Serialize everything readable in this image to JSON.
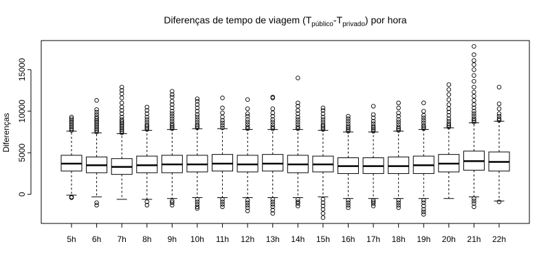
{
  "chart_data": {
    "type": "box",
    "title": {
      "prefix": "Diferenças de tempo de viagem (T",
      "sub1": "público",
      "mid": "-T",
      "sub2": "privado",
      "suffix": ") por hora"
    },
    "xlabel": "",
    "ylabel": "Diferenças",
    "ylim": [
      -3500,
      18500
    ],
    "yticks": [
      0,
      5000,
      10000,
      15000
    ],
    "grid": false,
    "categories": [
      "5h",
      "6h",
      "7h",
      "8h",
      "9h",
      "10h",
      "11h",
      "12h",
      "13h",
      "14h",
      "15h",
      "16h",
      "17h",
      "18h",
      "19h",
      "20h",
      "21h",
      "22h"
    ],
    "boxes": [
      {
        "whisker_low": -100,
        "q1": 2800,
        "median": 3700,
        "q3": 4700,
        "whisker_high": 7600,
        "outliers_low": [
          -300,
          -400
        ],
        "outliers_high": [
          7700,
          7900,
          8100,
          8300,
          8500,
          8700,
          8900,
          9100,
          9300
        ]
      },
      {
        "whisker_low": -300,
        "q1": 2600,
        "median": 3500,
        "q3": 4500,
        "whisker_high": 7400,
        "outliers_low": [
          -1000,
          -1300
        ],
        "outliers_high": [
          7500,
          7700,
          7900,
          8100,
          8300,
          8500,
          8700,
          8900,
          9100,
          9300,
          9600,
          9900,
          10200,
          11300
        ]
      },
      {
        "whisker_low": -600,
        "q1": 2400,
        "median": 3300,
        "q3": 4300,
        "whisker_high": 7300,
        "outliers_low": [],
        "outliers_high": [
          7400,
          7600,
          7800,
          8000,
          8200,
          8400,
          8600,
          8800,
          9000,
          9300,
          9700,
          10100,
          10500,
          11000,
          11600,
          12100,
          12500,
          12900
        ]
      },
      {
        "whisker_low": -600,
        "q1": 2600,
        "median": 3500,
        "q3": 4600,
        "whisker_high": 7700,
        "outliers_low": [
          -900,
          -1300
        ],
        "outliers_high": [
          7800,
          8000,
          8200,
          8400,
          8700,
          9000,
          9300,
          9700,
          10100,
          10500
        ]
      },
      {
        "whisker_low": -500,
        "q1": 2600,
        "median": 3600,
        "q3": 4700,
        "whisker_high": 7800,
        "outliers_low": [
          -800,
          -1000,
          -1300
        ],
        "outliers_high": [
          7900,
          8100,
          8300,
          8500,
          8800,
          9100,
          9400,
          9700,
          10000,
          10400,
          10800,
          11200,
          11700,
          12000,
          12400
        ]
      },
      {
        "whisker_low": -400,
        "q1": 2700,
        "median": 3600,
        "q3": 4700,
        "whisker_high": 7900,
        "outliers_low": [
          -600,
          -900,
          -1200,
          -1500,
          -1700
        ],
        "outliers_high": [
          8000,
          8200,
          8400,
          8700,
          9000,
          9300,
          9600,
          10000,
          10400,
          10800,
          11200,
          11500
        ]
      },
      {
        "whisker_low": -400,
        "q1": 2800,
        "median": 3700,
        "q3": 4800,
        "whisker_high": 7900,
        "outliers_low": [
          -600,
          -900,
          -1200,
          -1500
        ],
        "outliers_high": [
          8000,
          8300,
          8600,
          8900,
          9300,
          9800,
          10400,
          11600
        ]
      },
      {
        "whisker_low": -400,
        "q1": 2700,
        "median": 3600,
        "q3": 4700,
        "whisker_high": 7800,
        "outliers_low": [
          -700,
          -1000,
          -1300,
          -1600,
          -2000
        ],
        "outliers_high": [
          7900,
          8100,
          8400,
          8700,
          9000,
          9400,
          9700,
          10300,
          11400
        ]
      },
      {
        "whisker_low": -400,
        "q1": 2800,
        "median": 3700,
        "q3": 4800,
        "whisker_high": 7800,
        "outliers_low": [
          -600,
          -900,
          -1200,
          -1500,
          -1900,
          -2300
        ],
        "outliers_high": [
          7900,
          8100,
          8400,
          8700,
          9000,
          9400,
          9800,
          10300,
          11600,
          11700
        ]
      },
      {
        "whisker_low": -400,
        "q1": 2600,
        "median": 3600,
        "q3": 4700,
        "whisker_high": 7800,
        "outliers_low": [
          -600,
          -900,
          -1100,
          -1400
        ],
        "outliers_high": [
          7900,
          8100,
          8400,
          8700,
          9000,
          9300,
          9700,
          10100,
          10600,
          11000,
          14000
        ]
      },
      {
        "whisker_low": -300,
        "q1": 2700,
        "median": 3600,
        "q3": 4600,
        "whisker_high": 7700,
        "outliers_low": [
          -600,
          -1000,
          -1400,
          -1800,
          -2300,
          -2800
        ],
        "outliers_high": [
          7800,
          8000,
          8200,
          8400,
          8700,
          9000,
          9300,
          9700,
          10100,
          10400
        ]
      },
      {
        "whisker_low": -500,
        "q1": 2500,
        "median": 3400,
        "q3": 4400,
        "whisker_high": 7500,
        "outliers_low": [
          -700,
          -1000,
          -1300,
          -1600
        ],
        "outliers_high": [
          7600,
          7800,
          8000,
          8200,
          8500,
          8800,
          9100,
          9400
        ]
      },
      {
        "whisker_low": -500,
        "q1": 2500,
        "median": 3400,
        "q3": 4400,
        "whisker_high": 7500,
        "outliers_low": [
          -700,
          -900,
          -1100,
          -1400
        ],
        "outliers_high": [
          7600,
          7800,
          8000,
          8200,
          8500,
          8800,
          9200,
          9600,
          10600
        ]
      },
      {
        "whisker_low": -500,
        "q1": 2500,
        "median": 3400,
        "q3": 4500,
        "whisker_high": 7600,
        "outliers_low": [
          -700,
          -1000,
          -1300,
          -1600
        ],
        "outliers_high": [
          7700,
          7900,
          8100,
          8400,
          8700,
          9000,
          9400,
          9800,
          10400,
          11000
        ]
      },
      {
        "whisker_low": -500,
        "q1": 2500,
        "median": 3500,
        "q3": 4600,
        "whisker_high": 7800,
        "outliers_low": [
          -700,
          -1000,
          -1400,
          -1800,
          -2100,
          -2400
        ],
        "outliers_high": [
          7900,
          8100,
          8300,
          8600,
          8900,
          9200,
          9500,
          10000,
          11000
        ]
      },
      {
        "whisker_low": -500,
        "q1": 2700,
        "median": 3700,
        "q3": 4800,
        "whisker_high": 8000,
        "outliers_low": [],
        "outliers_high": [
          8100,
          8300,
          8500,
          8800,
          9100,
          9500,
          9900,
          10300,
          10800,
          11400,
          12000,
          12600,
          13200
        ]
      },
      {
        "whisker_low": -300,
        "q1": 2900,
        "median": 4000,
        "q3": 5200,
        "whisker_high": 8600,
        "outliers_low": [
          -500,
          -800,
          -1100,
          -1500
        ],
        "outliers_high": [
          8700,
          8900,
          9100,
          9400,
          9700,
          10000,
          10400,
          10800,
          11300,
          11800,
          12300,
          12900,
          13600,
          14300,
          15000,
          15600,
          16100,
          16800,
          17800
        ]
      },
      {
        "whisker_low": -800,
        "q1": 2800,
        "median": 3900,
        "q3": 5100,
        "whisker_high": 8800,
        "outliers_low": [
          -900
        ],
        "outliers_high": [
          8900,
          9100,
          9400,
          9700,
          10300,
          10900,
          12900
        ]
      }
    ]
  }
}
